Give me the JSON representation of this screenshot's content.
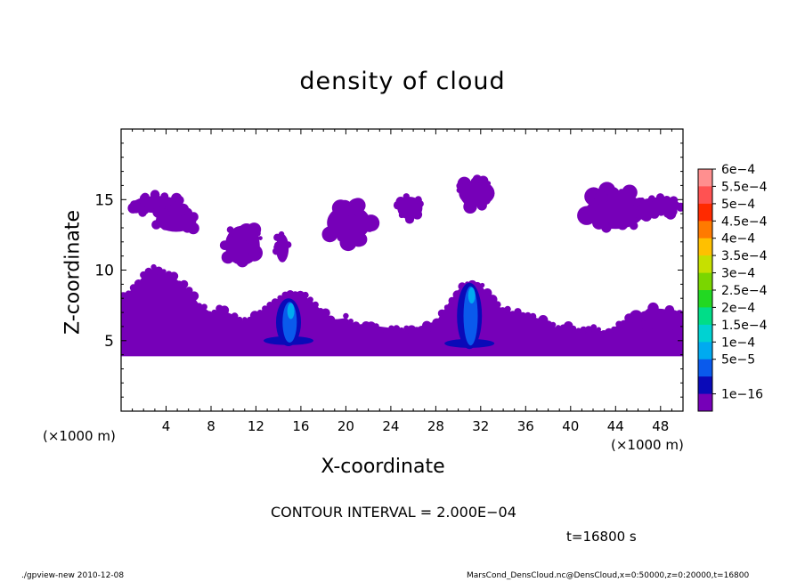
{
  "chart_data": {
    "type": "heatmap",
    "title": "density of cloud",
    "xlabel": "X-coordinate",
    "ylabel": "Z-coordinate",
    "x_unit_left": "(×1000 m)",
    "x_unit_right": "(×1000 m)",
    "xlim": [
      0,
      50
    ],
    "ylim": [
      0,
      20
    ],
    "x_ticks": [
      4,
      8,
      12,
      16,
      20,
      24,
      28,
      32,
      36,
      40,
      44,
      48
    ],
    "y_ticks": [
      5,
      10,
      15
    ],
    "colorbar": {
      "labels": [
        "6e−4",
        "5.5e−4",
        "5e−4",
        "4.5e−4",
        "4e−4",
        "3.5e−4",
        "3e−4",
        "2.5e−4",
        "2e−4",
        "1.5e−4",
        "1e−4",
        "5e−5",
        "1e−16"
      ],
      "colors": [
        "#ff8f8f",
        "#ff5252",
        "#ff2a00",
        "#ff7a00",
        "#ffc000",
        "#c6e000",
        "#7ad600",
        "#22d822",
        "#00dd88",
        "#00d2d2",
        "#00aaf0",
        "#0a5aec",
        "#0a0ab8",
        "#7600b8"
      ]
    },
    "cloud_color": "#7600b8",
    "core_colors": [
      "#0a0ab8",
      "#0a5aec",
      "#00aaf0"
    ],
    "annotation": "CONTOUR INTERVAL = 2.000E−04",
    "time": "t=16800 s"
  },
  "footer": {
    "left": "./gpview-new  2010-12-08",
    "right": "MarsCond_DensCloud.nc@DensCloud,x=0:50000,z=0:20000,t=16800"
  }
}
